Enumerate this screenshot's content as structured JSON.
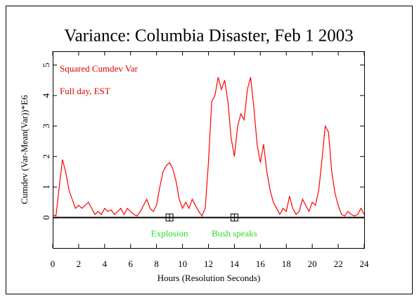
{
  "chart_data": {
    "type": "line",
    "title": "Variance: Columbia Disaster, Feb 1 2003",
    "xlabel": "Hours (Resolution Seconds)",
    "ylabel": "Cumdev (Var-Mean(Var))*E6",
    "annotations": [
      "Squared Cumdev Var",
      "Full day, EST"
    ],
    "annotation_color": "#e00000",
    "events": [
      {
        "x": 9,
        "label": "Explosion"
      },
      {
        "x": 14,
        "label": "Bush speaks"
      }
    ],
    "event_color": "#22dd22",
    "xlim": [
      0,
      24
    ],
    "xticks": [
      0,
      2,
      4,
      6,
      8,
      10,
      12,
      14,
      16,
      18,
      20,
      22,
      24
    ],
    "ylim": [
      -1,
      5.45
    ],
    "yticks": [
      0,
      1,
      2,
      3,
      4,
      5
    ],
    "x": [
      0,
      0.25,
      0.5,
      0.75,
      1,
      1.25,
      1.5,
      1.75,
      2,
      2.25,
      2.5,
      2.75,
      3,
      3.25,
      3.5,
      3.75,
      4,
      4.25,
      4.5,
      4.75,
      5,
      5.25,
      5.5,
      5.75,
      6,
      6.25,
      6.5,
      6.75,
      7,
      7.25,
      7.5,
      7.75,
      8,
      8.25,
      8.5,
      8.75,
      9,
      9.25,
      9.5,
      9.75,
      10,
      10.25,
      10.5,
      10.75,
      11,
      11.25,
      11.5,
      11.75,
      12,
      12.25,
      12.5,
      12.75,
      13,
      13.25,
      13.5,
      13.75,
      14,
      14.25,
      14.5,
      14.75,
      15,
      15.25,
      15.5,
      15.75,
      16,
      16.25,
      16.5,
      16.75,
      17,
      17.25,
      17.5,
      17.75,
      18,
      18.25,
      18.5,
      18.75,
      19,
      19.25,
      19.5,
      19.75,
      20,
      20.25,
      20.5,
      20.75,
      21,
      21.25,
      21.5,
      21.75,
      22,
      22.25,
      22.5,
      22.75,
      23,
      23.25,
      23.5,
      23.75,
      24
    ],
    "series": [
      {
        "name": "Squared Cumdev Var",
        "color": "#ff0000",
        "values": [
          0.1,
          0.05,
          1.0,
          1.9,
          1.5,
          0.9,
          0.6,
          0.3,
          0.4,
          0.3,
          0.4,
          0.5,
          0.3,
          0.1,
          0.2,
          0.1,
          0.3,
          0.2,
          0.25,
          0.1,
          0.2,
          0.3,
          0.1,
          0.3,
          0.2,
          0.1,
          0.05,
          0.2,
          0.4,
          0.6,
          0.3,
          0.2,
          0.4,
          1.0,
          1.5,
          1.7,
          1.8,
          1.6,
          1.2,
          0.6,
          0.3,
          0.5,
          0.3,
          0.6,
          0.4,
          0.2,
          0.05,
          0.3,
          1.8,
          3.8,
          4.0,
          4.6,
          4.2,
          4.5,
          3.8,
          2.6,
          2.0,
          3.0,
          3.4,
          3.2,
          4.2,
          4.6,
          3.6,
          2.4,
          1.8,
          2.4,
          1.5,
          0.9,
          0.5,
          0.3,
          0.1,
          0.3,
          0.2,
          0.7,
          0.3,
          0.1,
          0.2,
          0.6,
          0.4,
          0.2,
          0.5,
          0.4,
          0.9,
          1.9,
          3.0,
          2.8,
          1.5,
          0.8,
          0.4,
          0.1,
          0.05,
          0.2,
          0.1,
          0.05,
          0.1,
          0.3,
          0.1
        ]
      }
    ]
  }
}
